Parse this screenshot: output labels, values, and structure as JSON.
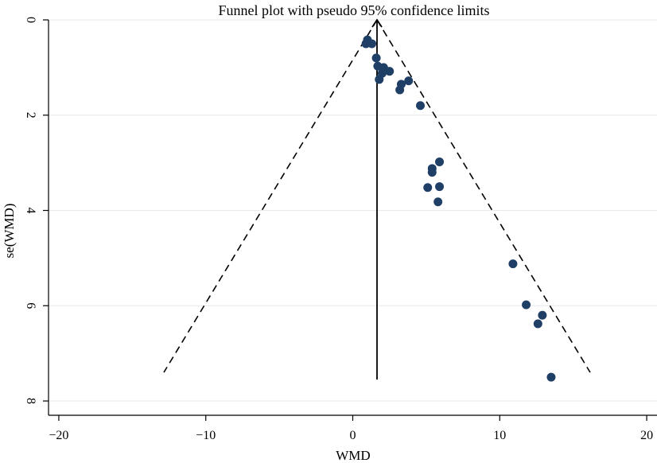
{
  "chart_data": {
    "type": "scatter",
    "title": "Funnel plot with pseudo 95% confidence limits",
    "xlabel": "WMD",
    "ylabel": "se(WMD)",
    "xlim": [
      -20.7,
      20.7
    ],
    "ylim": [
      0,
      8.3
    ],
    "y_reversed": true,
    "xticks": [
      -20,
      -10,
      0,
      10,
      20
    ],
    "xtick_labels": [
      "−20",
      "−10",
      "0",
      "10",
      "20"
    ],
    "yticks": [
      0,
      2,
      4,
      6,
      8
    ],
    "ytick_labels": [
      "0",
      "2",
      "4",
      "6",
      "8"
    ],
    "grid": "horizontal",
    "pooled_estimate": 1.65,
    "pooled_line_se_range": [
      0,
      7.55
    ],
    "ci_se_max": 7.4,
    "ci_multiplier": 1.96,
    "points": [
      {
        "x": 1.0,
        "y": 0.42
      },
      {
        "x": 1.3,
        "y": 0.5
      },
      {
        "x": 0.9,
        "y": 0.5
      },
      {
        "x": 1.6,
        "y": 0.8
      },
      {
        "x": 1.7,
        "y": 0.97
      },
      {
        "x": 2.1,
        "y": 1.0
      },
      {
        "x": 2.5,
        "y": 1.08
      },
      {
        "x": 2.0,
        "y": 1.12
      },
      {
        "x": 1.8,
        "y": 1.25
      },
      {
        "x": 3.3,
        "y": 1.35
      },
      {
        "x": 3.8,
        "y": 1.28
      },
      {
        "x": 3.2,
        "y": 1.47
      },
      {
        "x": 4.6,
        "y": 1.8
      },
      {
        "x": 5.9,
        "y": 2.98
      },
      {
        "x": 5.4,
        "y": 3.12
      },
      {
        "x": 5.4,
        "y": 3.2
      },
      {
        "x": 5.1,
        "y": 3.52
      },
      {
        "x": 5.9,
        "y": 3.5
      },
      {
        "x": 5.8,
        "y": 3.82
      },
      {
        "x": 10.9,
        "y": 5.12
      },
      {
        "x": 11.8,
        "y": 5.98
      },
      {
        "x": 12.9,
        "y": 6.2
      },
      {
        "x": 12.6,
        "y": 6.38
      },
      {
        "x": 13.5,
        "y": 7.5
      }
    ],
    "colors": {
      "point": "#1f3f66",
      "line": "#000000",
      "grid": "#e6eaee",
      "axis": "#000000"
    }
  }
}
